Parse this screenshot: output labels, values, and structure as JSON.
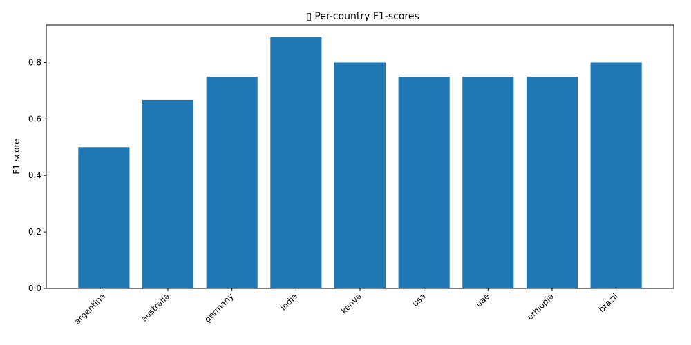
{
  "chart_data": {
    "type": "bar",
    "title": "▯ Per-country F1-scores",
    "xlabel": "",
    "ylabel": "F1-score",
    "categories": [
      "argentina",
      "australia",
      "germany",
      "india",
      "kenya",
      "usa",
      "uae",
      "ethiopia",
      "brazil"
    ],
    "values": [
      0.5,
      0.667,
      0.75,
      0.889,
      0.8,
      0.75,
      0.75,
      0.75,
      0.8
    ],
    "ylim": [
      0,
      0.933
    ],
    "yticks": [
      0.0,
      0.2,
      0.4,
      0.6,
      0.8
    ],
    "ytick_labels": [
      "0.0",
      "0.2",
      "0.4",
      "0.6",
      "0.8"
    ],
    "bar_color": "#1f77b4",
    "grid": false,
    "legend": "none"
  }
}
